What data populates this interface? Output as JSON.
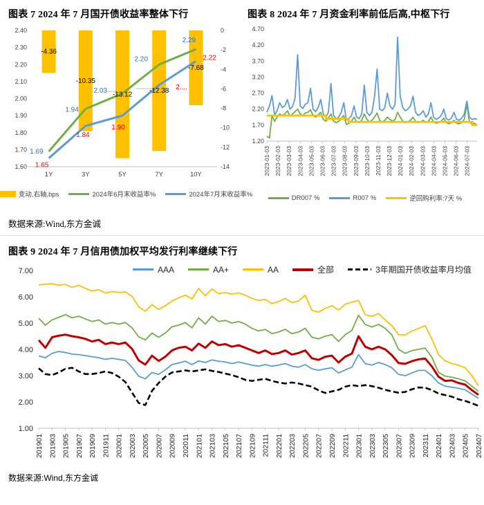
{
  "figure7": {
    "title": "图表 7  2024 年 7 月国开债收益率整体下行",
    "source": "数据来源:Wind,东方金诚"
  },
  "figure8": {
    "title": "图表 8   2024 年 7 月资金利率前低后高,中枢下行"
  },
  "figure9": {
    "title": "图表 9   2024 年 7 月信用债加权平均发行利率继续下行",
    "source": "数据来源:Wind,东方金诚"
  },
  "chart_data": [
    {
      "type": "bar",
      "subtype": "combo-bar-line",
      "title": "图表 7  2024 年 7 月国开债收益率整体下行",
      "categories": [
        "1Y",
        "3Y",
        "5Y",
        "7Y",
        "10Y"
      ],
      "left_axis": {
        "min": 1.6,
        "max": 2.4,
        "ticks": [
          "2.40",
          "2.30",
          "2.20",
          "2.10",
          "2.00",
          "1.90",
          "1.80",
          "1.70",
          "1.60"
        ]
      },
      "right_axis": {
        "min": -14,
        "max": 0,
        "ticks": [
          "0",
          "-2",
          "-4",
          "-6",
          "-8",
          "-10",
          "-12",
          "-14"
        ]
      },
      "series": [
        {
          "name": "变动,右轴,bps",
          "type": "bar",
          "axis": "right",
          "color": "#FFC000",
          "values": [
            -4.36,
            -10.35,
            -13.12,
            -12.38,
            -7.68
          ],
          "labels": [
            "-4.36",
            "-10.35",
            "-13.12",
            "-12.38",
            "-7.68"
          ],
          "label_color": "#000000"
        },
        {
          "name": "2024年6月末收益率%",
          "type": "line",
          "axis": "left",
          "color": "#70AD47",
          "values": [
            1.69,
            1.94,
            2.03,
            2.2,
            2.29
          ],
          "labels": [
            "1.69",
            "1.94",
            "2.03",
            "2.20",
            "2.29"
          ],
          "label_color": "#2E75B6"
        },
        {
          "name": "2024年7月末收益率%",
          "type": "line",
          "axis": "left",
          "color": "#5B9BD5",
          "values": [
            1.65,
            1.84,
            1.9,
            2.08,
            2.22
          ],
          "labels": [
            "1.65",
            "1.84",
            "1.90",
            "2....",
            "2.22"
          ],
          "label_color": "#FF0000"
        }
      ],
      "grid": false,
      "legend_position": "bottom"
    },
    {
      "type": "line",
      "title": "图表 8   2024 年 7 月资金利率前低后高,中枢下行",
      "ylim": [
        1.2,
        4.7
      ],
      "y_ticks": [
        "4.70",
        "4.20",
        "3.70",
        "3.20",
        "2.70",
        "2.20",
        "1.70",
        "1.20"
      ],
      "x_ticks": [
        "2023-01-03",
        "2023-02-03",
        "2023-03-03",
        "2023-04-03",
        "2023-05-03",
        "2023-06-03",
        "2023-07-03",
        "2023-08-03",
        "2023-09-03",
        "2023-10-03",
        "2023-11-03",
        "2023-12-03",
        "2024-01-03",
        "2024-02-03",
        "2024-03-03",
        "2024-04-03",
        "2024-05-03",
        "2024-06-03",
        "2024-07-03"
      ],
      "x_tick_end_fraction": 0.953,
      "series": [
        {
          "name": "DR007 %",
          "color": "#70AD47",
          "values": [
            1.35,
            1.3,
            2.0,
            1.82,
            1.95,
            2.05,
            2.0,
            2.05,
            2.15,
            1.98,
            2.05,
            2.12,
            2.2,
            2.05,
            2.0,
            2.08,
            2.1,
            2.18,
            2.0,
            1.95,
            2.02,
            2.1,
            1.88,
            1.82,
            1.92,
            2.05,
            1.82,
            1.78,
            1.82,
            1.9,
            2.0,
            1.72,
            1.76,
            1.82,
            1.95,
            1.8,
            1.78,
            1.85,
            2.05,
            1.88,
            1.8,
            1.85,
            1.95,
            2.08,
            1.85,
            1.8,
            1.85,
            1.95,
            1.88,
            1.82,
            1.88,
            2.1,
            1.95,
            1.82,
            1.78,
            1.8,
            1.85,
            1.95,
            1.82,
            1.78,
            1.8,
            1.85,
            1.78,
            1.82,
            1.95,
            1.8,
            1.76,
            1.78,
            1.82,
            1.92,
            1.78,
            1.74,
            1.78,
            1.85,
            1.76,
            1.74,
            1.78,
            1.88,
            2.35,
            1.8,
            1.74,
            1.76,
            1.7
          ]
        },
        {
          "name": "R007 %",
          "color": "#5B9BD5",
          "values": [
            2.1,
            2.3,
            2.62,
            2.02,
            2.15,
            2.4,
            2.25,
            2.3,
            2.5,
            2.2,
            2.28,
            2.55,
            3.9,
            2.3,
            2.22,
            2.35,
            2.4,
            2.85,
            2.2,
            2.12,
            2.25,
            2.5,
            2.05,
            1.95,
            2.1,
            3.0,
            2.0,
            1.9,
            1.95,
            2.1,
            2.4,
            1.86,
            1.9,
            2.0,
            2.3,
            1.95,
            1.9,
            2.05,
            2.95,
            2.1,
            2.0,
            2.1,
            2.6,
            3.45,
            2.2,
            2.15,
            2.25,
            2.7,
            2.3,
            2.2,
            2.35,
            4.45,
            2.6,
            2.25,
            2.15,
            2.2,
            2.3,
            2.6,
            2.1,
            2.0,
            2.05,
            2.15,
            1.95,
            2.05,
            2.4,
            1.95,
            1.88,
            1.92,
            2.0,
            2.2,
            1.9,
            1.86,
            1.92,
            2.1,
            1.88,
            1.85,
            1.92,
            2.05,
            2.45,
            1.95,
            1.88,
            1.9,
            1.88
          ]
        },
        {
          "name": "逆回购利率:7天 %",
          "color": "#FFC000",
          "step": true,
          "step_points": [
            [
              0,
              2.0
            ],
            [
              0.281,
              1.9
            ],
            [
              0.389,
              1.8
            ],
            [
              0.978,
              1.7
            ]
          ]
        }
      ],
      "grid": false,
      "legend_position": "bottom"
    },
    {
      "type": "line",
      "title": "图表 9   2024 年 7 月信用债加权平均发行利率继续下行",
      "ylim": [
        1.0,
        7.0
      ],
      "y_ticks": [
        "7.00",
        "6.00",
        "5.00",
        "4.00",
        "3.00",
        "2.00",
        "1.00"
      ],
      "x_ticks": [
        "201901",
        "201903",
        "201905",
        "201907",
        "201909",
        "201911",
        "202001",
        "202003",
        "202005",
        "202007",
        "202009",
        "202011",
        "202101",
        "202103",
        "202105",
        "202107",
        "202109",
        "202111",
        "202201",
        "202203",
        "202205",
        "202207",
        "202209",
        "202211",
        "202301",
        "202303",
        "202305",
        "202307",
        "202309",
        "202311",
        "202401",
        "202403",
        "202405",
        "202407"
      ],
      "n_points": 67,
      "series": [
        {
          "name": "AAA",
          "color": "#5B9BD5",
          "values": [
            3.75,
            3.68,
            3.85,
            3.92,
            3.88,
            3.82,
            3.8,
            3.76,
            3.72,
            3.68,
            3.62,
            3.66,
            3.62,
            3.58,
            3.32,
            2.98,
            2.88,
            3.12,
            3.05,
            3.22,
            3.42,
            3.48,
            3.55,
            3.42,
            3.56,
            3.5,
            3.6,
            3.55,
            3.52,
            3.46,
            3.52,
            3.46,
            3.4,
            3.36,
            3.42,
            3.36,
            3.4,
            3.46,
            3.36,
            3.32,
            3.42,
            3.26,
            3.2,
            3.26,
            3.3,
            3.1,
            3.22,
            3.32,
            3.8,
            3.46,
            3.4,
            3.5,
            3.42,
            3.3,
            3.05,
            3.0,
            3.1,
            3.2,
            3.2,
            3.0,
            2.72,
            2.6,
            2.56,
            2.52,
            2.46,
            2.3,
            2.13
          ]
        },
        {
          "name": "AA+",
          "color": "#70AD47",
          "values": [
            5.18,
            4.92,
            5.12,
            5.22,
            5.32,
            5.2,
            5.26,
            5.16,
            5.06,
            5.12,
            4.96,
            5.02,
            4.96,
            5.02,
            4.82,
            4.48,
            4.36,
            4.62,
            4.46,
            4.62,
            4.86,
            4.92,
            5.02,
            4.82,
            5.2,
            4.96,
            5.26,
            5.06,
            5.1,
            5.0,
            5.06,
            4.96,
            4.8,
            4.7,
            4.76,
            4.6,
            4.66,
            4.76,
            4.6,
            4.66,
            4.8,
            4.46,
            4.4,
            4.5,
            4.56,
            4.3,
            4.56,
            4.72,
            5.3,
            4.95,
            4.85,
            4.95,
            4.8,
            4.55,
            4.0,
            3.85,
            3.95,
            4.0,
            4.05,
            3.7,
            3.12,
            2.98,
            2.94,
            2.88,
            2.8,
            2.6,
            2.4
          ]
        },
        {
          "name": "AA",
          "color": "#FFC000",
          "values": [
            6.45,
            6.48,
            6.5,
            6.44,
            6.47,
            6.36,
            6.44,
            6.32,
            6.22,
            6.27,
            6.14,
            6.2,
            6.16,
            6.18,
            6.02,
            5.62,
            5.45,
            5.7,
            5.52,
            5.66,
            5.84,
            5.96,
            6.06,
            5.92,
            6.32,
            6.04,
            6.3,
            6.12,
            6.16,
            6.1,
            6.15,
            6.06,
            5.94,
            5.86,
            5.9,
            5.74,
            5.82,
            5.94,
            5.78,
            5.84,
            6.06,
            5.48,
            5.42,
            5.56,
            5.66,
            5.5,
            5.72,
            5.8,
            5.86,
            5.32,
            5.26,
            5.36,
            5.12,
            4.9,
            4.56,
            4.55,
            4.7,
            4.8,
            4.9,
            4.4,
            3.8,
            3.56,
            3.46,
            3.4,
            3.3,
            3.0,
            2.62
          ]
        },
        {
          "name": "全部",
          "color": "#C00000",
          "thick": true,
          "values": [
            4.35,
            4.06,
            4.46,
            4.52,
            4.56,
            4.5,
            4.46,
            4.4,
            4.3,
            4.36,
            4.2,
            4.26,
            4.2,
            4.26,
            4.02,
            3.58,
            3.42,
            3.76,
            3.56,
            3.72,
            3.96,
            4.06,
            4.1,
            3.96,
            4.22,
            4.06,
            4.3,
            4.16,
            4.2,
            4.1,
            4.16,
            4.06,
            3.96,
            3.86,
            3.96,
            3.82,
            3.86,
            3.96,
            3.8,
            3.86,
            3.96,
            3.66,
            3.6,
            3.72,
            3.76,
            3.5,
            3.72,
            3.84,
            4.5,
            4.1,
            4.0,
            4.1,
            4.0,
            3.78,
            3.48,
            3.45,
            3.55,
            3.62,
            3.65,
            3.35,
            2.96,
            2.8,
            2.82,
            2.72,
            2.66,
            2.45,
            2.27
          ]
        },
        {
          "name": "3年期国开债收益率月均值",
          "color": "#000000",
          "dashed": true,
          "values": [
            3.28,
            3.06,
            3.02,
            3.12,
            3.26,
            3.3,
            3.16,
            3.06,
            3.06,
            3.1,
            3.16,
            3.1,
            2.96,
            2.76,
            2.36,
            1.96,
            1.88,
            2.42,
            2.72,
            2.96,
            3.12,
            3.16,
            3.2,
            3.16,
            3.2,
            3.24,
            3.18,
            3.14,
            3.08,
            3.02,
            2.94,
            2.84,
            2.8,
            2.84,
            2.88,
            2.8,
            2.74,
            2.7,
            2.74,
            2.7,
            2.64,
            2.58,
            2.44,
            2.34,
            2.4,
            2.46,
            2.58,
            2.64,
            2.6,
            2.64,
            2.6,
            2.54,
            2.46,
            2.4,
            2.35,
            2.38,
            2.48,
            2.55,
            2.54,
            2.45,
            2.32,
            2.26,
            2.2,
            2.1,
            2.04,
            1.95,
            1.85
          ]
        }
      ],
      "grid": false,
      "legend_position": "top"
    }
  ]
}
